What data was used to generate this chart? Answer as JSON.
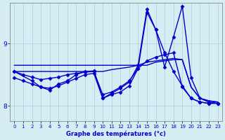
{
  "title": "Graphe des températures (°c)",
  "background_color": "#d4eef4",
  "line_color": "#0000cc",
  "grid_color": "#aaccdd",
  "xlim": [
    -0.5,
    23.5
  ],
  "ylim": [
    7.75,
    9.65
  ],
  "xticks": [
    0,
    1,
    2,
    3,
    4,
    5,
    6,
    7,
    8,
    9,
    10,
    11,
    12,
    13,
    14,
    15,
    16,
    17,
    18,
    19,
    20,
    21,
    22,
    23
  ],
  "yticks": [
    8,
    9
  ],
  "series": [
    {
      "x": [
        0,
        1,
        2,
        3,
        4,
        5,
        6,
        7,
        8,
        9,
        10,
        11,
        12,
        13,
        14,
        15,
        16,
        17,
        18,
        19,
        20,
        21,
        22,
        23
      ],
      "y": [
        8.65,
        8.65,
        8.65,
        8.65,
        8.65,
        8.65,
        8.65,
        8.65,
        8.65,
        8.65,
        8.65,
        8.65,
        8.65,
        8.65,
        8.65,
        8.65,
        8.7,
        8.72,
        8.74,
        8.74,
        8.3,
        8.12,
        8.08,
        8.06
      ],
      "marker": null,
      "linewidth": 1.0
    },
    {
      "x": [
        0,
        1,
        2,
        3,
        4,
        5,
        6,
        7,
        8,
        9,
        10,
        11,
        12,
        13,
        14,
        15,
        16,
        17,
        18,
        19,
        20,
        21,
        22,
        23
      ],
      "y": [
        8.55,
        8.55,
        8.55,
        8.55,
        8.55,
        8.55,
        8.55,
        8.55,
        8.55,
        8.55,
        8.55,
        8.58,
        8.6,
        8.62,
        8.65,
        8.7,
        8.72,
        8.74,
        8.76,
        8.74,
        8.3,
        8.12,
        8.08,
        8.06
      ],
      "marker": null,
      "linewidth": 1.0
    },
    {
      "x": [
        0,
        1,
        2,
        3,
        4,
        5,
        6,
        7,
        8,
        9,
        10,
        11,
        12,
        13,
        14,
        15,
        16,
        17,
        18,
        19,
        20,
        21,
        22,
        23
      ],
      "y": [
        8.55,
        8.5,
        8.46,
        8.42,
        8.44,
        8.46,
        8.5,
        8.52,
        8.54,
        8.55,
        8.18,
        8.22,
        8.3,
        8.4,
        8.6,
        8.72,
        8.78,
        8.82,
        8.85,
        8.3,
        8.12,
        8.06,
        8.04,
        8.04
      ],
      "marker": "D",
      "markersize": 2.5,
      "linewidth": 1.0
    },
    {
      "x": [
        0,
        1,
        2,
        3,
        4,
        5,
        6,
        7,
        8,
        9,
        10,
        11,
        12,
        13,
        14,
        15,
        16,
        17,
        18,
        19,
        20,
        21,
        22,
        23
      ],
      "y": [
        8.45,
        8.4,
        8.35,
        8.3,
        8.28,
        8.32,
        8.38,
        8.44,
        8.5,
        8.52,
        8.12,
        8.18,
        8.22,
        8.32,
        8.6,
        9.5,
        9.22,
        8.85,
        8.55,
        8.32,
        8.12,
        8.06,
        8.04,
        8.04
      ],
      "marker": "D",
      "markersize": 2.5,
      "linewidth": 1.0
    },
    {
      "x": [
        0,
        2,
        3,
        4,
        5,
        6,
        7,
        8,
        9,
        10,
        11,
        12,
        13,
        14,
        15,
        16,
        17,
        18,
        19,
        20,
        21,
        22,
        23
      ],
      "y": [
        8.55,
        8.4,
        8.3,
        8.25,
        8.35,
        8.4,
        8.5,
        8.55,
        8.56,
        8.12,
        8.2,
        8.28,
        8.38,
        8.65,
        9.55,
        9.22,
        8.62,
        9.1,
        9.6,
        8.45,
        8.12,
        8.06,
        8.04
      ],
      "marker": "D",
      "markersize": 2.5,
      "linewidth": 1.0
    }
  ]
}
